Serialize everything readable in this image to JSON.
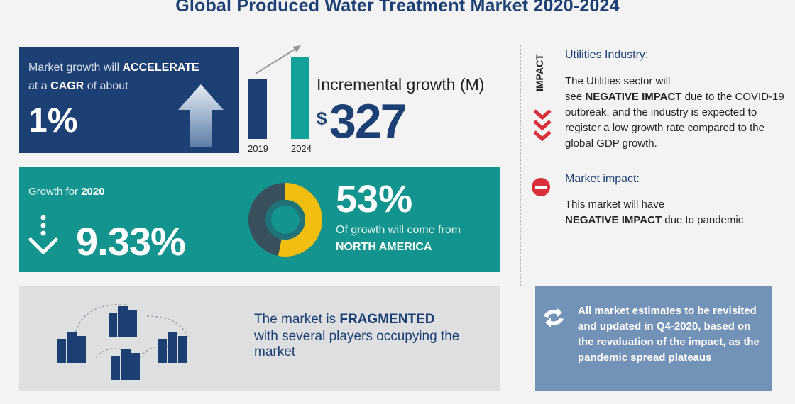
{
  "title": "Global Produced Water Treatment Market 2020-2024",
  "cagr": {
    "line1_prefix": "Market growth will",
    "line1_bold": "ACCELERATE",
    "line2_prefix": "at a",
    "line2_bold": "CAGR",
    "line2_suffix": "of about",
    "value": "1%"
  },
  "incremental": {
    "label": "Incremental growth (M)",
    "currency": "$",
    "value": "327",
    "year_start": "2019",
    "year_end": "2024"
  },
  "growth_2020": {
    "label_prefix": "Growth for",
    "label_bold": "2020",
    "value": "9.33%"
  },
  "regional": {
    "percent": "53%",
    "share": 0.53,
    "subtitle": "Of growth will come from",
    "region": "NORTH AMERICA"
  },
  "fragmented": {
    "line1_prefix": "The market is",
    "line1_bold": "FRAGMENTED",
    "line2": "with several players occupying the market"
  },
  "impact": {
    "vertical_label": "IMPACT",
    "utilities_title": "Utilities Industry:",
    "utilities_line1": "The Utilities sector will",
    "utilities_line2_prefix": "see",
    "utilities_line2_bold": "NEGATIVE IMPACT",
    "utilities_line2_suffix": "due to the COVID-19 outbreak, and the industry is expected to register a low growth rate compared to the global GDP growth.",
    "market_title": "Market impact:",
    "market_line1": "This market will have",
    "market_line2_bold": "NEGATIVE IMPACT",
    "market_line2_suffix": "due to pandemic"
  },
  "note": {
    "text": "All market estimates to be revisited and updated in Q4-2020, based on the revaluation of the impact, as the pandemic spread plateaus"
  },
  "colors": {
    "navy": "#1c3f74",
    "teal": "#14948f",
    "yellow": "#f2bf10",
    "red": "#d9313b",
    "slate": "#7392b7"
  }
}
